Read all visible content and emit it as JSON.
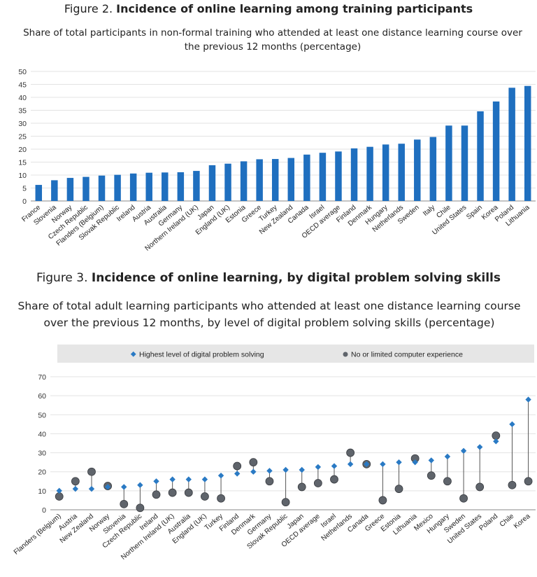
{
  "figure2": {
    "number": "Figure 2.",
    "title": "Incidence of online learning among training participants",
    "subtitle": "Share of total participants in non-formal training who attended at least one distance learning course over the previous 12 months (percentage)"
  },
  "figure3": {
    "number": "Figure 3.",
    "title": "Incidence of online learning, by digital problem solving skills",
    "subtitle": "Share of total adult learning participants who attended at least one distance learning course over the previous 12 months, by level of digital problem solving skills (percentage)"
  },
  "colors": {
    "bar": "#1f6fbf",
    "diamond": "#2a7ac4",
    "circle": "#5f646b",
    "gridline": "#e3e3e3",
    "legend_bg": "#e6e6e6"
  },
  "chart_data": [
    {
      "type": "bar",
      "ylim": [
        0,
        50
      ],
      "yticks": [
        0,
        5,
        10,
        15,
        20,
        25,
        30,
        35,
        40,
        45,
        50
      ],
      "grid": true,
      "categories": [
        "France",
        "Slovenia",
        "Norway",
        "Czech Republic",
        "Flanders (Belgium)",
        "Slovak Republic",
        "Ireland",
        "Austria",
        "Australia",
        "Germany",
        "Northern Ireland (UK)",
        "Japan",
        "England (UK)",
        "Estonia",
        "Greece",
        "Turkey",
        "New Zealand",
        "Canada",
        "Israel",
        "OECD average",
        "Finland",
        "Denmark",
        "Hungary",
        "Netherlands",
        "Sweden",
        "Italy",
        "Chile",
        "United States",
        "Spain",
        "Korea",
        "Poland",
        "Lithuania"
      ],
      "values": [
        6.2,
        8.0,
        8.9,
        9.3,
        9.8,
        10.1,
        10.6,
        10.9,
        11.0,
        11.1,
        11.6,
        13.8,
        14.4,
        15.3,
        16.1,
        16.2,
        16.6,
        17.9,
        18.6,
        19.1,
        20.3,
        20.9,
        21.8,
        22.1,
        23.7,
        24.7,
        29.1,
        29.1,
        34.6,
        38.4,
        43.7,
        44.4
      ]
    },
    {
      "type": "scatter",
      "ylim": [
        0,
        70
      ],
      "yticks": [
        0,
        10,
        20,
        30,
        40,
        50,
        60,
        70
      ],
      "grid": true,
      "legend_position": "top",
      "categories": [
        "Flanders (Belgium)",
        "Austria",
        "New Zealand",
        "Norway",
        "Slovenia",
        "Czech Republic",
        "Ireland",
        "Northern Ireland (UK)",
        "Australia",
        "England (UK)",
        "Turkey",
        "Finland",
        "Denmark",
        "Germany",
        "Slovak Republic",
        "Japan",
        "OECD average",
        "Israel",
        "Netherlands",
        "Canada",
        "Greece",
        "Estonia",
        "Lithuania",
        "Mexico",
        "Hungary",
        "Sweden",
        "United States",
        "Poland",
        "Chile",
        "Korea"
      ],
      "series": [
        {
          "name": "Highest level of digital problem solving",
          "marker": "diamond",
          "values": [
            10,
            11,
            11,
            12,
            12,
            13,
            15,
            16,
            16,
            16,
            18,
            19,
            20,
            20.5,
            21,
            21,
            22.5,
            23,
            24,
            24,
            24,
            25,
            25,
            26,
            28,
            31,
            33,
            36,
            45,
            58
          ]
        },
        {
          "name": "No or limited computer experience",
          "marker": "circle",
          "values": [
            7,
            15,
            20,
            12.5,
            3,
            1,
            8,
            9,
            9,
            7,
            6,
            23,
            25,
            15,
            4,
            12,
            14,
            16,
            30,
            24,
            5,
            11,
            27,
            18,
            15,
            6,
            12,
            39,
            13,
            15
          ]
        }
      ]
    }
  ]
}
